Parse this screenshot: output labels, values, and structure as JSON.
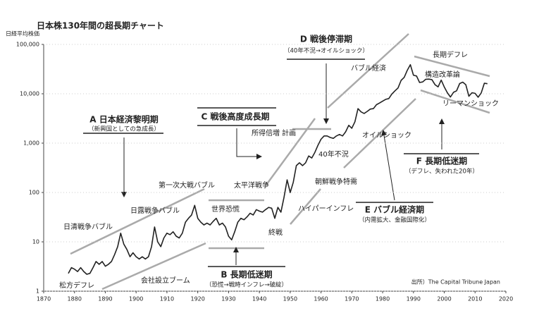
{
  "chart_data": {
    "type": "line",
    "title": "日本株130年間の超長期チャート",
    "ylabel": "日経平均株価",
    "source": "出所）The Capital Tribune Japan",
    "x": [
      1878,
      1879,
      1880,
      1881,
      1882,
      1883,
      1884,
      1885,
      1886,
      1887,
      1888,
      1889,
      1890,
      1891,
      1892,
      1893,
      1894,
      1895,
      1896,
      1897,
      1898,
      1899,
      1900,
      1901,
      1902,
      1903,
      1904,
      1905,
      1906,
      1907,
      1908,
      1909,
      1910,
      1911,
      1912,
      1913,
      1914,
      1915,
      1916,
      1917,
      1918,
      1919,
      1920,
      1921,
      1922,
      1923,
      1924,
      1925,
      1926,
      1927,
      1928,
      1929,
      1930,
      1931,
      1932,
      1933,
      1934,
      1935,
      1936,
      1937,
      1938,
      1939,
      1940,
      1941,
      1942,
      1943,
      1944,
      1945,
      1946,
      1947,
      1948,
      1949,
      1950,
      1951,
      1952,
      1953,
      1954,
      1955,
      1956,
      1957,
      1958,
      1959,
      1960,
      1961,
      1962,
      1963,
      1964,
      1965,
      1966,
      1967,
      1968,
      1969,
      1970,
      1971,
      1972,
      1973,
      1974,
      1975,
      1976,
      1977,
      1978,
      1979,
      1980,
      1981,
      1982,
      1983,
      1984,
      1985,
      1986,
      1987,
      1988,
      1989,
      1990,
      1991,
      1992,
      1993,
      1994,
      1995,
      1996,
      1997,
      1998,
      1999,
      2000,
      2001,
      2002,
      2003,
      2004,
      2005,
      2006,
      2007,
      2008,
      2009,
      2010,
      2011,
      2012,
      2013,
      2014
    ],
    "series": [
      {
        "color": "#222222",
        "values": [
          2.3,
          3,
          2.8,
          2.5,
          3,
          2.5,
          2.2,
          2.3,
          3,
          4,
          3.5,
          4,
          3.2,
          3.5,
          4,
          5.5,
          8,
          15,
          9,
          7,
          5,
          6,
          5,
          4.5,
          5,
          4.5,
          5,
          8,
          20,
          10,
          8,
          12,
          15,
          14,
          16,
          13,
          12,
          15,
          25,
          30,
          35,
          55,
          30,
          25,
          22,
          24,
          22,
          26,
          30,
          22,
          24,
          20,
          13,
          11,
          16,
          25,
          30,
          28,
          32,
          38,
          35,
          45,
          42,
          40,
          45,
          50,
          48,
          30,
          50,
          40,
          80,
          180,
          100,
          160,
          350,
          400,
          350,
          400,
          550,
          500,
          650,
          900,
          1200,
          1400,
          1400,
          1300,
          1250,
          1400,
          1500,
          1400,
          1700,
          2300,
          2000,
          2700,
          5000,
          4300,
          4000,
          4400,
          4900,
          5000,
          6000,
          6500,
          7100,
          7700,
          8000,
          9900,
          11500,
          13100,
          18700,
          21500,
          30000,
          38900,
          23800,
          22900,
          16900,
          17400,
          19700,
          19800,
          19400,
          15300,
          13800,
          18900,
          13800,
          10500,
          8600,
          10700,
          11500,
          16100,
          17200,
          15300,
          8900,
          10500,
          10200,
          8500,
          10400,
          16300,
          16000
        ]
      }
    ],
    "xlim": [
      1870,
      2020
    ],
    "xticks": [
      1870,
      1880,
      1890,
      1900,
      1910,
      1920,
      1930,
      1940,
      1950,
      1960,
      1970,
      1980,
      1990,
      2000,
      2010,
      2020
    ],
    "ylim": [
      1,
      100000
    ],
    "yticks": [
      1,
      10,
      100,
      {
        "value": 1000,
        "label": "1,000"
      },
      {
        "value": 10000,
        "label": "10,000"
      },
      {
        "value": 100000,
        "label": "100,000"
      }
    ],
    "log_scale": true,
    "grid": true,
    "phases": [
      {
        "title": "A 日本経済黎明期",
        "subtitle": "（新興国としての急成長）"
      },
      {
        "title": "B 長期低迷期",
        "subtitle": "（恐慌→戦時インフレ→破綻）"
      },
      {
        "title": "C 戦後高度成長期"
      },
      {
        "title": "D 戦後停滞期",
        "subtitle": "（40年不況→オイルショック）"
      },
      {
        "title": "E バブル経済期",
        "subtitle": "（内需拡大、金融国際化）"
      },
      {
        "title": "F 長期低迷期",
        "subtitle": "（デフレ、失われた20年）"
      }
    ],
    "events": [
      "松方デフレ",
      "日清戦争バブル",
      "日露戦争バブル",
      "会社設立ブーム",
      "第一次大戦バブル",
      "世界恐慌",
      "太平洋戦争",
      "終戦",
      "ハイパーインフレ",
      "朝鮮戦争特需",
      "所得倍増 計画",
      "40年不況",
      "オイルショック",
      "バブル経済",
      "長期デフレ",
      "構造改革論",
      "リーマンショック"
    ]
  }
}
